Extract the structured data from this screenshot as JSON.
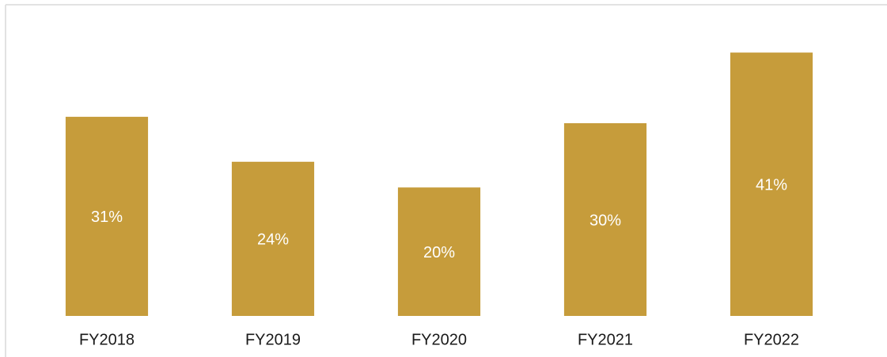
{
  "chart_data": {
    "type": "bar",
    "categories": [
      "FY2018",
      "FY2019",
      "FY2020",
      "FY2021",
      "FY2022"
    ],
    "values": [
      31,
      24,
      20,
      30,
      41
    ],
    "value_labels": [
      "31%",
      "24%",
      "20%",
      "30%",
      "41%"
    ],
    "color": "#c69c3b",
    "ylim": [
      0,
      45
    ]
  }
}
